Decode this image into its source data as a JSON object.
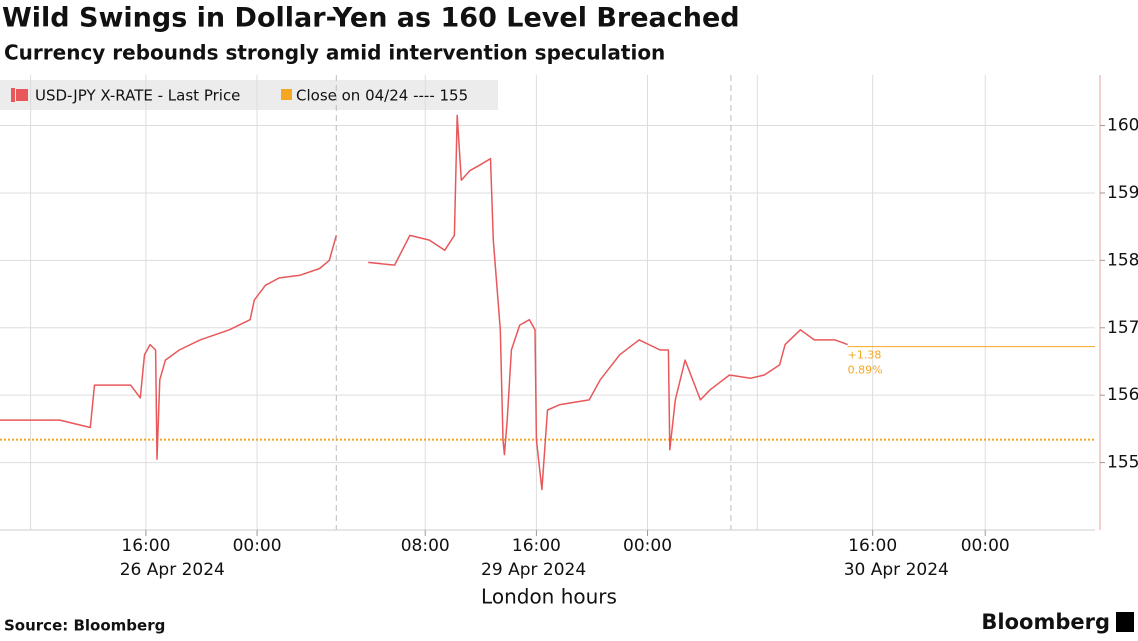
{
  "chart_data": {
    "type": "line",
    "title": "Wild Swings in Dollar-Yen as 160 Level Breached",
    "subtitle": "Currency rebounds strongly amid intervention speculation",
    "x_label": "London hours",
    "source": "Source: Bloomberg",
    "brand": "Bloomberg",
    "x": [
      0,
      4.3,
      6.5,
      6.8,
      9.4,
      10.1,
      10.4,
      10.8,
      11.2,
      11.3,
      11.5,
      11.9,
      12.9,
      14.4,
      16.5,
      18.0,
      18.3,
      19.1,
      20.1,
      21.6,
      23.0,
      23.7,
      24.2,
      25.0,
      26.5,
      28.4,
      29.5,
      30.9,
      32.0,
      32.7,
      32.9,
      33.2,
      33.8,
      34.5,
      35.3,
      35.5,
      36.0,
      36.2,
      36.3,
      36.5,
      36.8,
      37.4,
      38.1,
      38.5,
      38.6,
      39.0,
      39.4,
      40.3,
      42.4,
      43.2,
      44.6,
      46.0,
      47.5,
      48.1,
      48.2,
      48.6,
      49.3,
      50.4,
      51.1,
      52.5,
      54.0,
      55.0,
      56.1,
      56.5,
      57.6,
      58.6,
      60.1,
      61.0
    ],
    "series": [
      {
        "name": "USD-JPY X-RATE - Last Price",
        "color": "#e8585a",
        "values": [
          155.63,
          155.63,
          155.52,
          156.15,
          156.15,
          155.96,
          156.6,
          156.75,
          156.67,
          155.05,
          156.23,
          156.52,
          156.67,
          156.82,
          156.97,
          157.12,
          157.41,
          157.63,
          157.74,
          157.78,
          157.88,
          158.0,
          158.37,
          null,
          157.97,
          157.93,
          158.37,
          158.3,
          158.15,
          158.37,
          160.15,
          159.19,
          159.33,
          159.41,
          159.51,
          158.3,
          156.97,
          155.34,
          155.12,
          155.63,
          156.67,
          157.04,
          157.12,
          156.97,
          155.34,
          154.6,
          155.78,
          155.86,
          155.93,
          156.23,
          156.6,
          156.82,
          156.67,
          156.67,
          155.19,
          155.93,
          156.52,
          155.93,
          156.08,
          156.3,
          156.25,
          156.3,
          156.45,
          156.75,
          156.97,
          156.82,
          156.82,
          156.75
        ]
      }
    ],
    "reference_line": {
      "name": "Close on 04/24 ---- 155",
      "value": 155.34,
      "color": "#f5a623"
    },
    "last_value": {
      "value": 156.72,
      "labels": [
        "+1.38",
        "0.89%"
      ],
      "color": "#f5a623"
    },
    "xlim": [
      0,
      78.8
    ],
    "xticks": [
      {
        "value": 10.5,
        "label": "16:00"
      },
      {
        "value": 18.5,
        "label": "00:00"
      },
      {
        "value": 30.6,
        "label": "08:00"
      },
      {
        "value": 38.6,
        "label": "16:00"
      },
      {
        "value": 46.6,
        "label": "00:00"
      },
      {
        "value": 62.8,
        "label": "16:00"
      },
      {
        "value": 70.9,
        "label": "00:00"
      }
    ],
    "xgrid": [
      2.2,
      54.5
    ],
    "session_breaks": [
      24.2,
      52.6
    ],
    "date_labels": [
      {
        "value": 12.4,
        "label": "26 Apr 2024"
      },
      {
        "value": 38.4,
        "label": "29 Apr 2024"
      },
      {
        "value": 64.5,
        "label": "30 Apr 2024"
      }
    ],
    "ylim": [
      154.0,
      160.75
    ],
    "yticks": [
      155,
      156,
      157,
      158,
      159,
      160
    ],
    "grid": true
  }
}
